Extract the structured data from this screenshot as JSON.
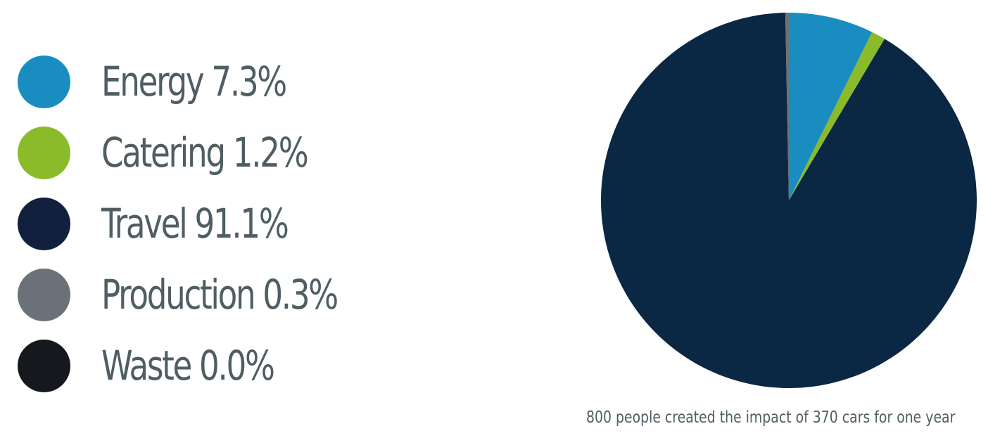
{
  "chart_data": {
    "type": "pie",
    "categories": [
      "Energy",
      "Catering",
      "Travel",
      "Production",
      "Waste"
    ],
    "values": [
      7.3,
      1.2,
      91.1,
      0.3,
      0.0
    ],
    "labels": [
      "Energy 7.3%",
      "Catering 1.2%",
      "Travel 91.1%",
      "Production 0.3%",
      "Waste 0.0%"
    ],
    "colors": [
      "#1a8dc0",
      "#8bbb2a",
      "#0a2744",
      "#6a7178",
      "#15191d"
    ],
    "legend_colors": [
      "#1a8dc0",
      "#8bbb2a",
      "#11203d",
      "#6a7178",
      "#15191d"
    ],
    "caption": "800 people created the impact of 370 cars for one year",
    "legend_position": "left"
  }
}
